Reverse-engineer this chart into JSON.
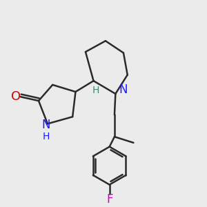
{
  "background_color": "#ebebeb",
  "bond_color": "#2a2a2a",
  "bond_width": 1.8,
  "figsize": [
    3.0,
    3.0
  ],
  "dpi": 100,
  "colors": {
    "O": "#cc0000",
    "N": "#1a1aff",
    "H_pip": "#3a8a7a",
    "F": "#cc00cc",
    "bond": "#2a2a2a"
  }
}
